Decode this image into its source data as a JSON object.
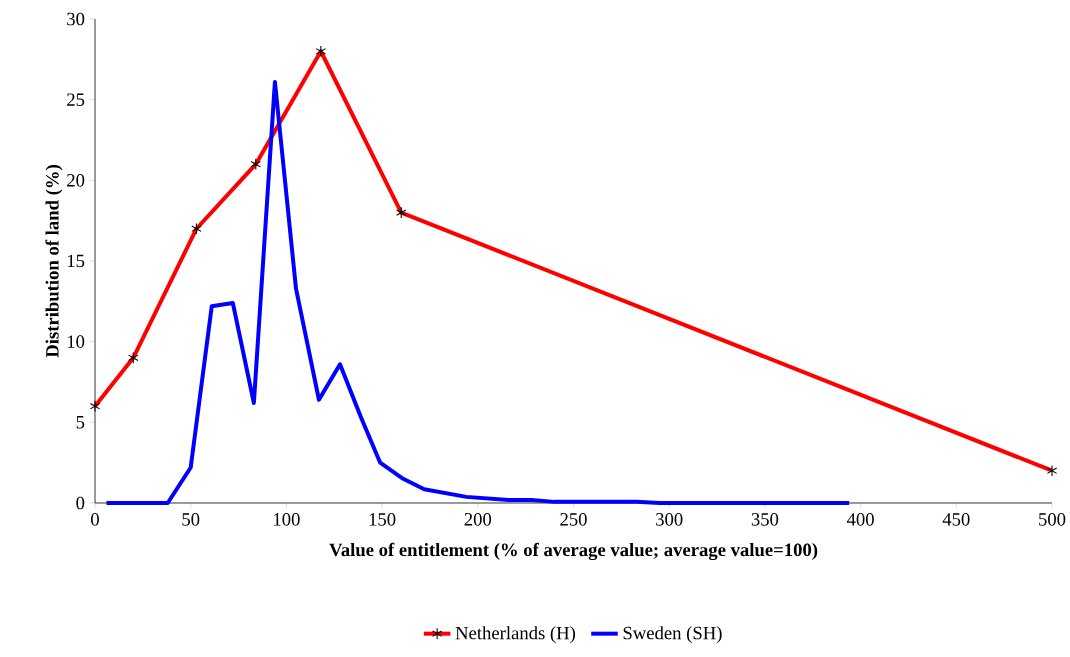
{
  "chart_data": {
    "type": "line",
    "xlabel": "Value of entitlement (%  of average value; average value=100)",
    "ylabel": "Distribution of land (%)",
    "xlim": [
      0,
      500
    ],
    "xticks": [
      0,
      50,
      100,
      150,
      200,
      250,
      300,
      350,
      400,
      450,
      500
    ],
    "ylim": [
      0,
      30
    ],
    "yticks": [
      0,
      5,
      10,
      15,
      20,
      25,
      30
    ],
    "legend": "bottom",
    "line_style": "solid",
    "series": [
      {
        "name": "Netherlands (H)",
        "color": "#ff0000",
        "marker": "cross",
        "x": [
          0,
          20,
          53,
          84,
          118,
          160,
          500
        ],
        "values": [
          6,
          9,
          17,
          21,
          28,
          18,
          2
        ]
      },
      {
        "name": "Sweden (SH)",
        "color": "#0000ff",
        "marker": "none",
        "x": [
          6,
          38,
          50,
          61,
          72,
          83,
          94,
          105,
          117,
          128,
          139,
          149,
          161,
          172,
          194,
          216,
          228,
          240,
          283,
          295,
          394
        ],
        "values": [
          0,
          0,
          2.2,
          12.2,
          12.4,
          6.2,
          26.1,
          13.3,
          6.4,
          8.6,
          5.3,
          2.5,
          1.5,
          0.85,
          0.38,
          0.19,
          0.19,
          0.07,
          0.07,
          0,
          0
        ]
      }
    ]
  }
}
